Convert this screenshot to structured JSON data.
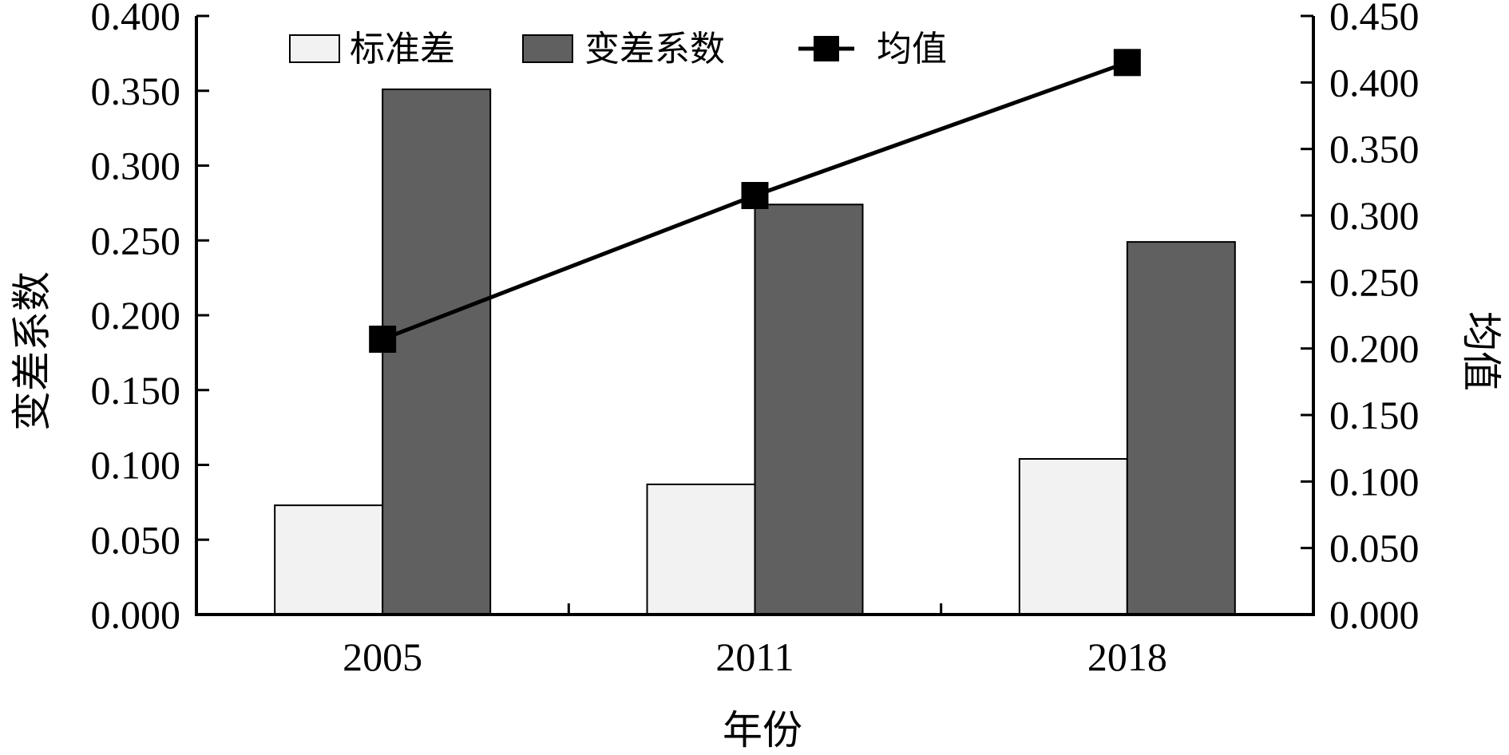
{
  "chart_data": {
    "type": "bar",
    "categories": [
      "2005",
      "2011",
      "2018"
    ],
    "series": [
      {
        "name": "标准差",
        "type": "bar",
        "axis": "left",
        "values": [
          0.073,
          0.087,
          0.104
        ],
        "color": "#f2f2f2"
      },
      {
        "name": "变差系数",
        "type": "bar",
        "axis": "left",
        "values": [
          0.351,
          0.274,
          0.249
        ],
        "color": "#606060"
      },
      {
        "name": "均值",
        "type": "line",
        "axis": "right",
        "values": [
          0.207,
          0.315,
          0.415
        ],
        "color": "#000000",
        "marker": "square"
      }
    ],
    "xlabel": "年份",
    "ylabel": "变差系数",
    "y2label": "均值",
    "ylim": [
      0,
      0.4
    ],
    "y2lim": [
      0,
      0.45
    ],
    "yticks": [
      "0.000",
      "0.050",
      "0.100",
      "0.150",
      "0.200",
      "0.250",
      "0.300",
      "0.350",
      "0.400"
    ],
    "y2ticks": [
      "0.000",
      "0.050",
      "0.100",
      "0.150",
      "0.200",
      "0.250",
      "0.300",
      "0.350",
      "0.400",
      "0.450"
    ],
    "grid": false,
    "legend": "top"
  }
}
